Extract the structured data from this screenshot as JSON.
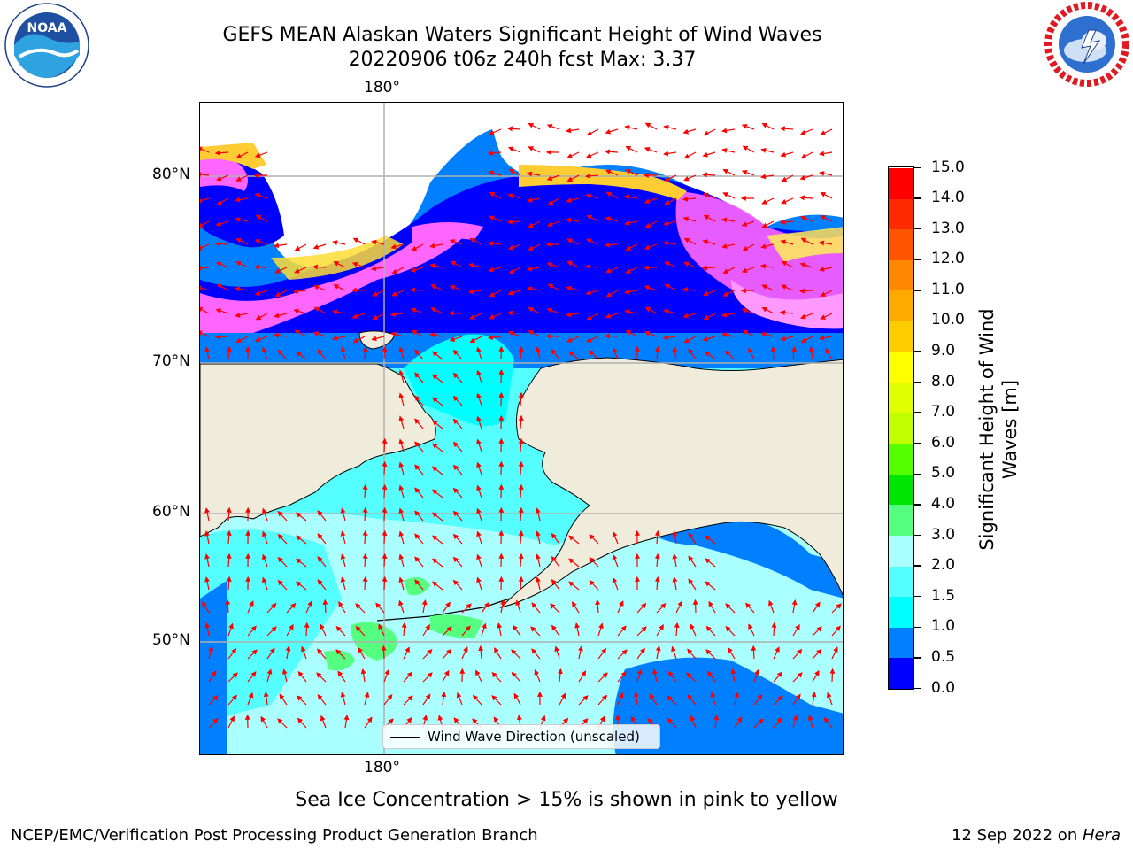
{
  "header": {
    "title_line1": "GEFS MEAN Alaskan Waters Significant Height of Wind Waves",
    "title_line2": "20220906 t06z 240h fcst   Max: 3.37"
  },
  "logos": {
    "left": {
      "name": "NOAA",
      "text": "NOAA",
      "ring_text": "NATIONAL OCEANIC AND ATMOSPHERIC ADMINISTRATION · U.S. DEPARTMENT OF COMMERCE"
    },
    "right": {
      "name": "National Weather Service",
      "ring_text": "NATIONAL WEATHER SERVICE"
    }
  },
  "map": {
    "lon_label_top": "180°",
    "lon_label_bottom": "180°",
    "lat_labels": [
      "80°N",
      "70°N",
      "60°N",
      "50°N"
    ],
    "land_color": "#efecdc",
    "arrow_color": "#ff0000",
    "legend_label": "Wind Wave Direction (unscaled)"
  },
  "colorbar": {
    "title_line1": "Significant Height of Wind",
    "title_line2": "Waves [m]",
    "ticks": [
      "0.0",
      "0.5",
      "1.0",
      "1.5",
      "2.0",
      "3.0",
      "4.0",
      "5.0",
      "6.0",
      "7.0",
      "8.0",
      "9.0",
      "10.0",
      "11.0",
      "12.0",
      "13.0",
      "14.0",
      "15.0"
    ],
    "colors": [
      "#0000ff",
      "#0080ff",
      "#00ffff",
      "#55ffff",
      "#aaffff",
      "#55ff80",
      "#00e600",
      "#55ff00",
      "#c0ff00",
      "#e0ff00",
      "#ffff00",
      "#ffcc00",
      "#ffaa00",
      "#ff8800",
      "#ff5500",
      "#ff2a00",
      "#ff0000"
    ]
  },
  "notes": {
    "ice_note": "Sea Ice Concentration > 15% is shown in pink to yellow",
    "footer_left": "NCEP/EMC/Verification Post Processing Product Generation Branch",
    "footer_date": "12 Sep 2022 on ",
    "footer_machine": "Hera"
  }
}
